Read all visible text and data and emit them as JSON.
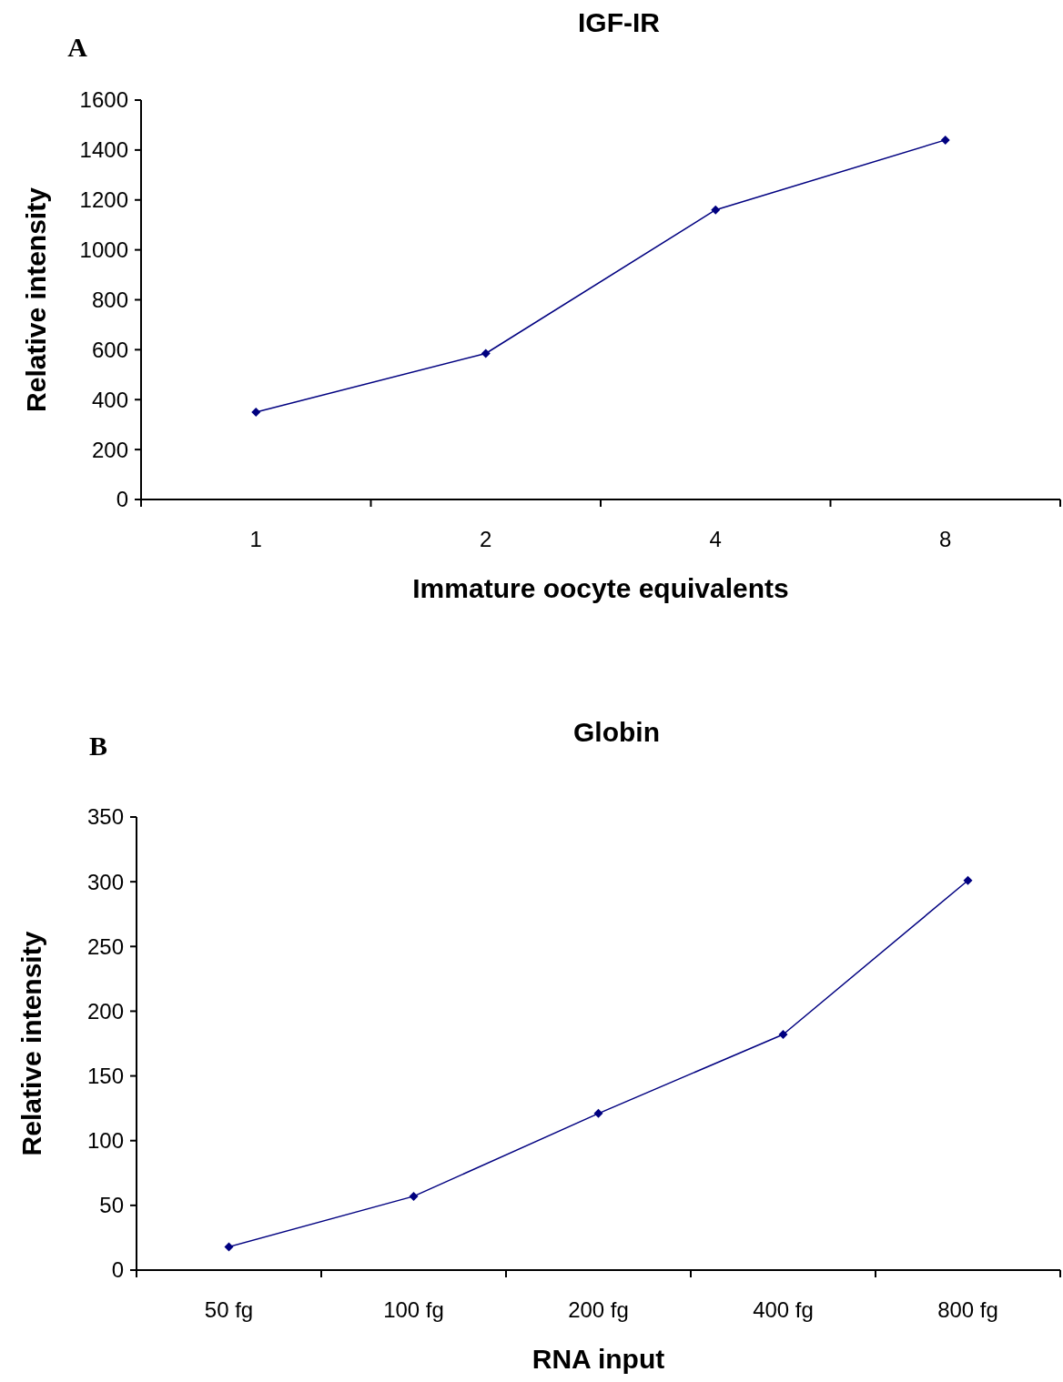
{
  "chart_data": [
    {
      "type": "line",
      "title": "IGF-IR",
      "xlabel": "Immature oocyte equivalents",
      "ylabel": "Relative intensity",
      "annotations": [
        "A"
      ],
      "categories": [
        "1",
        "2",
        "4",
        "8"
      ],
      "series": [
        {
          "color": "#000080",
          "values": [
            350,
            585,
            1160,
            1440
          ]
        }
      ],
      "ylim": [
        0,
        1600
      ],
      "yticks": [
        0,
        200,
        400,
        600,
        800,
        1000,
        1200,
        1400,
        1600
      ],
      "grid": false,
      "marker": "diamond",
      "line_style": "solid"
    },
    {
      "type": "line",
      "title": "Globin",
      "xlabel": "RNA input",
      "ylabel": "Relative intensity",
      "annotations": [
        "B"
      ],
      "categories": [
        "50 fg",
        "100 fg",
        "200 fg",
        "400 fg",
        "800 fg"
      ],
      "series": [
        {
          "color": "#000080",
          "values": [
            18,
            57,
            121,
            182,
            301
          ]
        }
      ],
      "ylim": [
        0,
        350
      ],
      "yticks": [
        0,
        50,
        100,
        150,
        200,
        250,
        300,
        350
      ],
      "grid": false,
      "marker": "diamond",
      "line_style": "solid"
    }
  ]
}
